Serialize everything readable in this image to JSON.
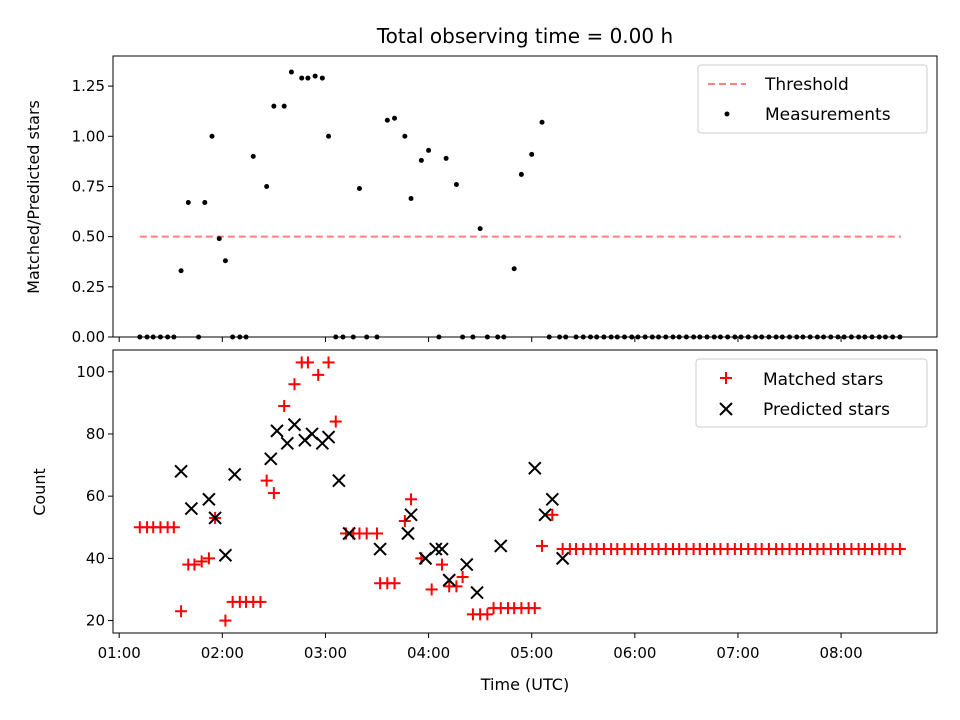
{
  "figure": {
    "title": "Total observing time = 0.00 h",
    "xlabel": "Time (UTC)",
    "x_tick_labels": [
      "01:00",
      "02:00",
      "03:00",
      "04:00",
      "05:00",
      "06:00",
      "07:00",
      "08:00"
    ]
  },
  "chart_data": [
    {
      "type": "scatter",
      "title": "Total observing time = 0.00 h",
      "xlabel": "",
      "ylabel": "Matched/Predicted stars",
      "x_unit": "hours UTC",
      "xlim": [
        0.94,
        8.93
      ],
      "ylim": [
        0,
        1.4
      ],
      "yticks": [
        0.0,
        0.25,
        0.5,
        0.75,
        1.0,
        1.25
      ],
      "ytick_labels": [
        "0.00",
        "0.25",
        "0.50",
        "0.75",
        "1.00",
        "1.25"
      ],
      "legend_position": "top-right",
      "threshold": {
        "name": "Threshold",
        "value": 0.5,
        "x_range": [
          1.2,
          8.58
        ],
        "color": "#ff7f7f",
        "style": "dashed"
      },
      "series": [
        {
          "name": "Measurements",
          "marker": "dot",
          "color": "#000000",
          "x": [
            1.2,
            1.27,
            1.33,
            1.4,
            1.47,
            1.53,
            1.6,
            1.67,
            1.77,
            1.83,
            1.9,
            1.97,
            2.03,
            2.1,
            2.17,
            2.23,
            2.3,
            2.43,
            2.5,
            2.6,
            2.67,
            2.77,
            2.83,
            2.9,
            2.97,
            3.03,
            3.1,
            3.17,
            3.27,
            3.33,
            3.4,
            3.5,
            3.6,
            3.67,
            3.77,
            3.83,
            3.93,
            4.0,
            4.1,
            4.17,
            4.27,
            4.33,
            4.43,
            4.5,
            4.57,
            4.67,
            4.73,
            4.83,
            4.9,
            5.0,
            5.1,
            5.17,
            5.27,
            5.33,
            5.43,
            5.5,
            5.57,
            5.63,
            5.7,
            5.77,
            5.83,
            5.9,
            5.97,
            6.03,
            6.1,
            6.17,
            6.23,
            6.3,
            6.37,
            6.43,
            6.5,
            6.57,
            6.63,
            6.7,
            6.77,
            6.83,
            6.9,
            6.97,
            7.03,
            7.1,
            7.17,
            7.23,
            7.3,
            7.37,
            7.43,
            7.5,
            7.57,
            7.63,
            7.7,
            7.77,
            7.83,
            7.9,
            7.97,
            8.03,
            8.1,
            8.17,
            8.23,
            8.3,
            8.37,
            8.43,
            8.5,
            8.57
          ],
          "y": [
            0,
            0,
            0,
            0,
            0,
            0,
            0.33,
            0.67,
            0,
            0.67,
            1.0,
            0.49,
            0.38,
            0,
            0,
            0,
            0.9,
            0.75,
            1.15,
            1.15,
            1.32,
            1.29,
            1.29,
            1.3,
            1.29,
            1.0,
            0,
            0,
            0,
            0.74,
            0,
            0,
            1.08,
            1.09,
            1.0,
            0.69,
            0.88,
            0.93,
            0,
            0.89,
            0.76,
            0,
            0,
            0.54,
            0,
            0,
            0,
            0.34,
            0.81,
            0.91,
            1.07,
            0,
            0,
            0,
            0,
            0,
            0,
            0,
            0,
            0,
            0,
            0,
            0,
            0,
            0,
            0,
            0,
            0,
            0,
            0,
            0,
            0,
            0,
            0,
            0,
            0,
            0,
            0,
            0,
            0,
            0,
            0,
            0,
            0,
            0,
            0,
            0,
            0,
            0,
            0,
            0,
            0,
            0,
            0,
            0,
            0,
            0,
            0,
            0,
            0,
            0,
            0
          ]
        }
      ]
    },
    {
      "type": "scatter",
      "title": "",
      "xlabel": "Time (UTC)",
      "ylabel": "Count",
      "x_unit": "hours UTC",
      "xlim": [
        0.94,
        8.93
      ],
      "ylim": [
        16,
        107
      ],
      "yticks": [
        20,
        40,
        60,
        80,
        100
      ],
      "ytick_labels": [
        "20",
        "40",
        "60",
        "80",
        "100"
      ],
      "xticks": [
        1,
        2,
        3,
        4,
        5,
        6,
        7,
        8
      ],
      "xtick_labels": [
        "01:00",
        "02:00",
        "03:00",
        "04:00",
        "05:00",
        "06:00",
        "07:00",
        "08:00"
      ],
      "legend_position": "top-right",
      "series": [
        {
          "name": "Matched stars",
          "marker": "plus",
          "color": "#ff0000",
          "x": [
            1.2,
            1.27,
            1.33,
            1.4,
            1.47,
            1.53,
            1.6,
            1.67,
            1.73,
            1.8,
            1.87,
            1.93,
            2.03,
            2.1,
            2.17,
            2.23,
            2.3,
            2.37,
            2.43,
            2.5,
            2.6,
            2.7,
            2.77,
            2.83,
            2.93,
            3.03,
            3.1,
            3.2,
            3.27,
            3.33,
            3.4,
            3.5,
            3.53,
            3.6,
            3.67,
            3.77,
            3.83,
            3.93,
            4.03,
            4.13,
            4.2,
            4.27,
            4.33,
            4.43,
            4.5,
            4.57,
            4.63,
            4.7,
            4.77,
            4.83,
            4.9,
            4.97,
            5.03,
            5.1,
            5.2,
            5.3,
            5.37,
            5.43,
            5.5,
            5.57,
            5.63,
            5.7,
            5.77,
            5.83,
            5.9,
            5.97,
            6.03,
            6.1,
            6.17,
            6.23,
            6.3,
            6.37,
            6.43,
            6.5,
            6.57,
            6.63,
            6.7,
            6.77,
            6.83,
            6.9,
            6.97,
            7.03,
            7.1,
            7.17,
            7.23,
            7.3,
            7.37,
            7.43,
            7.5,
            7.57,
            7.63,
            7.7,
            7.77,
            7.83,
            7.9,
            7.97,
            8.03,
            8.1,
            8.17,
            8.23,
            8.3,
            8.37,
            8.43,
            8.5,
            8.57
          ],
          "y": [
            50,
            50,
            50,
            50,
            50,
            50,
            23,
            38,
            38,
            39,
            40,
            53,
            20,
            26,
            26,
            26,
            26,
            26,
            65,
            61,
            89,
            96,
            103,
            103,
            99,
            103,
            84,
            48,
            48,
            48,
            48,
            48,
            32,
            32,
            32,
            52,
            59,
            40,
            30,
            38,
            31,
            31,
            34,
            22,
            22,
            22,
            24,
            24,
            24,
            24,
            24,
            24,
            24,
            44,
            54,
            43,
            43,
            43,
            43,
            43,
            43,
            43,
            43,
            43,
            43,
            43,
            43,
            43,
            43,
            43,
            43,
            43,
            43,
            43,
            43,
            43,
            43,
            43,
            43,
            43,
            43,
            43,
            43,
            43,
            43,
            43,
            43,
            43,
            43,
            43,
            43,
            43,
            43,
            43,
            43,
            43,
            43,
            43,
            43,
            43,
            43,
            43,
            43,
            43,
            43
          ]
        },
        {
          "name": "Predicted stars",
          "marker": "x",
          "color": "#000000",
          "x": [
            1.6,
            1.7,
            1.87,
            1.93,
            2.03,
            2.12,
            2.47,
            2.53,
            2.63,
            2.7,
            2.8,
            2.87,
            2.97,
            3.03,
            3.13,
            3.23,
            3.53,
            3.8,
            3.83,
            3.97,
            4.07,
            4.13,
            4.2,
            4.37,
            4.47,
            4.7,
            5.03,
            5.13,
            5.2,
            5.3
          ],
          "y": [
            68,
            56,
            59,
            53,
            41,
            67,
            72,
            81,
            77,
            83,
            78,
            80,
            77,
            79,
            65,
            48,
            43,
            48,
            54,
            40,
            43,
            43,
            33,
            38,
            29,
            44,
            69,
            54,
            59,
            40
          ]
        }
      ]
    }
  ]
}
